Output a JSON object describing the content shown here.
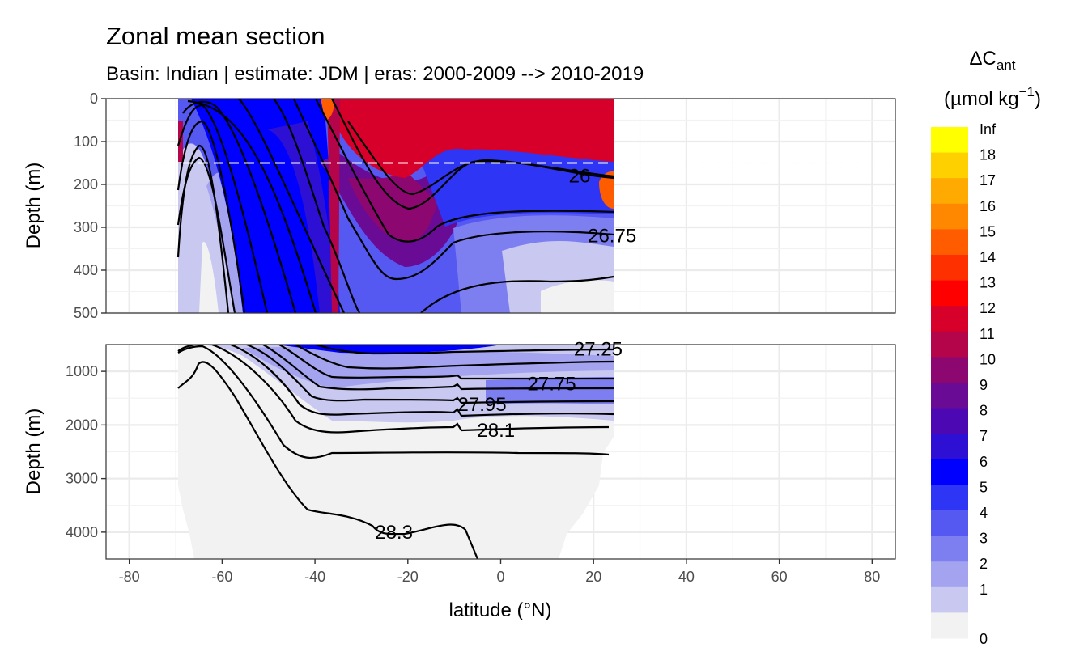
{
  "title": "Zonal mean section",
  "subtitle": "Basin: Indian | estimate: JDM  | eras: 2000-2009 --> 2010-2019",
  "chart_data": {
    "type": "contour-section",
    "xlabel": "latitude (°N)",
    "ylabel": "Depth (m)",
    "xlim": [
      -85,
      85
    ],
    "x_ticks": [
      -80,
      -60,
      -40,
      -20,
      0,
      20,
      40,
      60,
      80
    ],
    "x_tick_labels": [
      "-80",
      "-60",
      "-40",
      "-20",
      "0",
      "20",
      "40",
      "60",
      "80"
    ],
    "data_extent_lat": [
      -69.5,
      24.5
    ],
    "panels": [
      {
        "name": "upper",
        "ylim": [
          0,
          500
        ],
        "y_ticks": [
          0,
          100,
          200,
          300,
          400,
          500
        ],
        "y_tick_labels": [
          "0",
          "100",
          "200",
          "300",
          "400",
          "500"
        ],
        "reference_line_depth": 150
      },
      {
        "name": "lower",
        "ylim": [
          500,
          4500
        ],
        "y_ticks": [
          1000,
          2000,
          3000,
          4000
        ],
        "y_tick_labels": [
          "1000",
          "2000",
          "3000",
          "4000"
        ]
      }
    ],
    "isopycnal_labels": [
      {
        "text": "26",
        "lat": 17,
        "depth": 180
      },
      {
        "text": "26.75",
        "lat": 24,
        "depth": 320
      },
      {
        "text": "27.25",
        "lat": 21,
        "depth": 580
      },
      {
        "text": "27.75",
        "lat": 11,
        "depth": 1230
      },
      {
        "text": "27.95",
        "lat": -4,
        "depth": 1620
      },
      {
        "text": "28.1",
        "lat": -1,
        "depth": 2100
      },
      {
        "text": "28.3",
        "lat": -23,
        "depth": 4000
      }
    ],
    "legend": {
      "title_main": "ΔC",
      "title_sub": "ant",
      "unit_main": "(µmol kg",
      "unit_sup": "−1",
      "unit_close": ")",
      "levels": [
        "0",
        "1",
        "2",
        "3",
        "4",
        "5",
        "6",
        "7",
        "8",
        "9",
        "10",
        "11",
        "12",
        "13",
        "14",
        "15",
        "16",
        "17",
        "18",
        "Inf"
      ],
      "colors": [
        "#f2f2f2",
        "#c8c8f0",
        "#a3a3f0",
        "#7d7ff0",
        "#5658f2",
        "#2f35f5",
        "#0000ff",
        "#2e10d5",
        "#4c08b3",
        "#6a0b95",
        "#8c0870",
        "#b4044a",
        "#d6002a",
        "#ff0000",
        "#ff3000",
        "#ff5c00",
        "#ff8800",
        "#ffaa00",
        "#ffd000",
        "#ffff00"
      ]
    }
  }
}
